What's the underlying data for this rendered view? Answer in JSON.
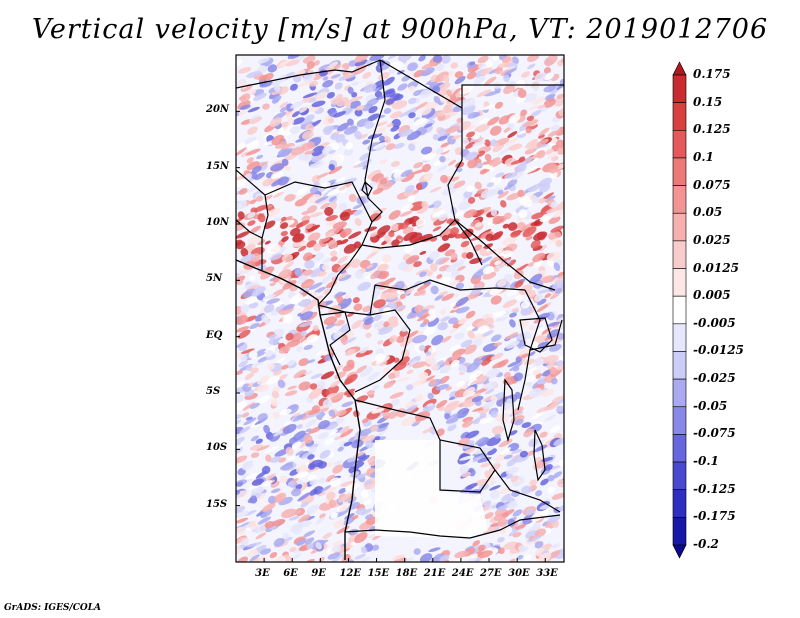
{
  "title": "Vertical velocity [m/s] at 900hPa, VT: 2019012706",
  "footer": "GrADS: IGES/COLA",
  "map": {
    "lon_range": [
      0,
      35
    ],
    "lat_range": [
      -20,
      25
    ],
    "x_ticks": [
      "3E",
      "6E",
      "9E",
      "12E",
      "15E",
      "18E",
      "21E",
      "24E",
      "27E",
      "30E",
      "33E"
    ],
    "x_tick_values": [
      3,
      6,
      9,
      12,
      15,
      18,
      21,
      24,
      27,
      30,
      33
    ],
    "y_ticks": [
      "20N",
      "15N",
      "10N",
      "5N",
      "EQ",
      "5S",
      "10S",
      "15S"
    ],
    "y_tick_values": [
      20,
      15,
      10,
      5,
      0,
      -5,
      -10,
      -15
    ]
  },
  "colorbar": {
    "labels": [
      "0.175",
      "0.15",
      "0.125",
      "0.1",
      "0.075",
      "0.05",
      "0.025",
      "0.0125",
      "0.005",
      "-0.005",
      "-0.0125",
      "-0.025",
      "-0.05",
      "-0.075",
      "-0.1",
      "-0.125",
      "-0.175",
      "-0.2"
    ],
    "colors": [
      "#b01820",
      "#c82c30",
      "#d84040",
      "#e45a5a",
      "#ec7878",
      "#f29494",
      "#f6b0b0",
      "#f9cccc",
      "#fce6e6",
      "#ffffff",
      "#e6e6fc",
      "#ccccf8",
      "#aaaaf0",
      "#8888e8",
      "#6666de",
      "#4848d0",
      "#2e2ec0",
      "#1818a8",
      "#0a0a8c"
    ]
  }
}
